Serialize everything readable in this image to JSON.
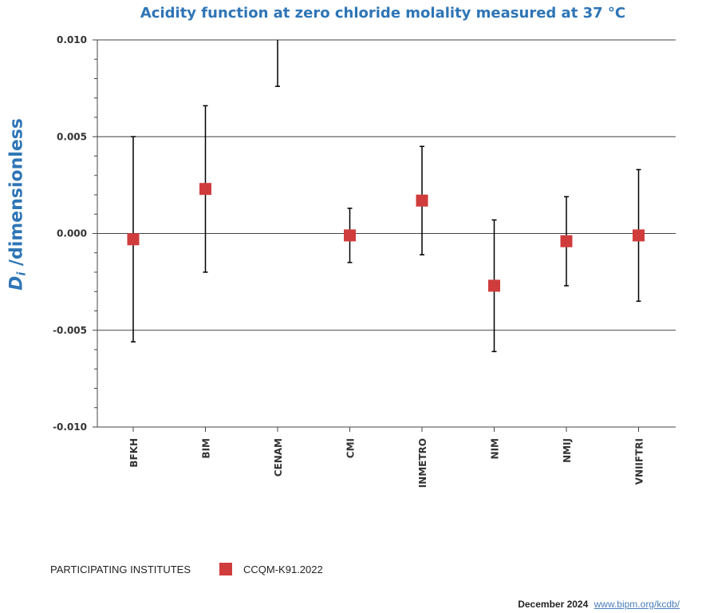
{
  "chart_data": {
    "type": "scatter",
    "title": "Acidity function at zero chloride molality measured at 37 °C",
    "ylabel": {
      "variable": "D",
      "subscript": "i",
      "text": " /dimensionless"
    },
    "xlabel": "",
    "categories": [
      "BFKH",
      "BIM",
      "CENAM",
      "CMI",
      "INMETRO",
      "NIM",
      "NMIJ",
      "VNIIFTRI"
    ],
    "ylim": [
      -0.01,
      0.01
    ],
    "yticks": [
      "0.010",
      "0.005",
      "0.000",
      "-0.005",
      "-0.010"
    ],
    "ytick_values": [
      0.01,
      0.005,
      0.0,
      -0.005,
      -0.01
    ],
    "grid": "horizontal major lines",
    "series": [
      {
        "name": "CCQM-K91.2022",
        "color": "#d03c3c",
        "marker": "square",
        "values": [
          -0.0003,
          0.0023,
          null,
          -0.0001,
          0.0017,
          -0.0027,
          -0.0004,
          -0.0001
        ],
        "error_low": [
          -0.0056,
          -0.002,
          0.0076,
          -0.0015,
          -0.0011,
          -0.0061,
          -0.0027,
          -0.0035
        ],
        "error_high": [
          0.005,
          0.0066,
          0.01,
          0.0013,
          0.0045,
          0.0007,
          0.0019,
          0.0033
        ]
      }
    ]
  },
  "legend": {
    "title": "PARTICIPATING INSTITUTES",
    "label": "CCQM-K91.2022"
  },
  "footer": {
    "date": "December 2024",
    "link": "www.bipm.org/kcdb/"
  }
}
